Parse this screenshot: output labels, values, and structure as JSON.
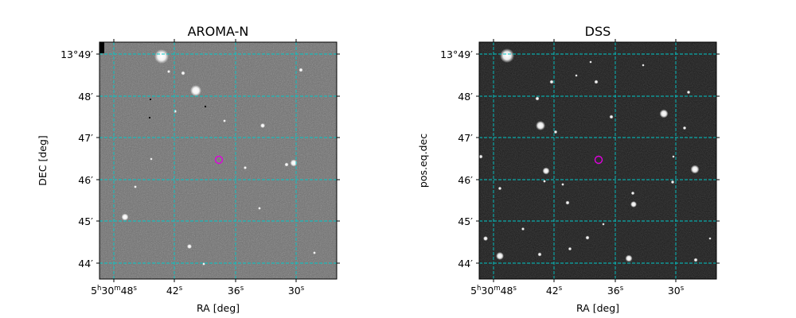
{
  "panels": [
    {
      "title": "AROMA-N",
      "xlabel": "RA [deg]",
      "ylabel": "DEC [deg]",
      "background": "#6e6e6e",
      "dec_ticks": [
        {
          "label": "13°49′",
          "value": 49
        },
        {
          "label": "48′",
          "value": 48
        },
        {
          "label": "47′",
          "value": 47
        },
        {
          "label": "46′",
          "value": 46
        },
        {
          "label": "45′",
          "value": 45
        },
        {
          "label": "44′",
          "value": 44
        }
      ],
      "ra_ticks": [
        {
          "label_main": "5",
          "sup_h": "h",
          "label_m": "30",
          "sup_m": "m",
          "label_s": "48",
          "sup_s": "s",
          "value": 48
        },
        {
          "label_main": "42",
          "sup_s": "s",
          "value": 42
        },
        {
          "label_main": "36",
          "sup_s": "s",
          "value": 36
        },
        {
          "label_main": "30",
          "sup_s": "s",
          "value": 30
        }
      ]
    },
    {
      "title": "DSS",
      "xlabel": "RA [deg]",
      "ylabel": "pos.eq.dec",
      "background": "#1a1a1a",
      "dec_ticks": [
        {
          "label": "13°49′",
          "value": 49
        },
        {
          "label": "48′",
          "value": 48
        },
        {
          "label": "47′",
          "value": 47
        },
        {
          "label": "46′",
          "value": 46
        },
        {
          "label": "45′",
          "value": 45
        },
        {
          "label": "44′",
          "value": 44
        }
      ],
      "ra_ticks": [
        {
          "label_main": "5",
          "sup_h": "h",
          "label_m": "30",
          "sup_m": "m",
          "label_s": "48",
          "sup_s": "s",
          "value": 48
        },
        {
          "label_main": "42",
          "sup_s": "s",
          "value": 42
        },
        {
          "label_main": "36",
          "sup_s": "s",
          "value": 36
        },
        {
          "label_main": "30",
          "sup_s": "s",
          "value": 30
        }
      ]
    }
  ],
  "colors": {
    "grid": "#00c8c8",
    "marker": "#e000e0",
    "aroma_bg": "#6e6e6e",
    "dss_bg": "#1a1a1a",
    "stars": "#ffffff"
  }
}
